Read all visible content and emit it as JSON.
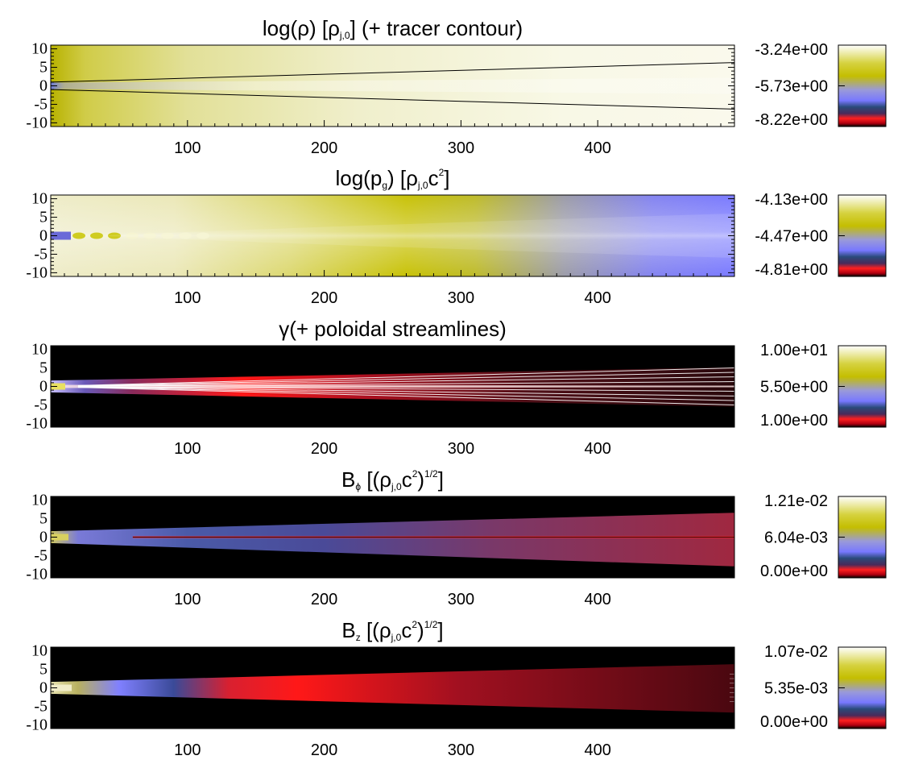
{
  "chart_data": [
    {
      "type": "heatmap",
      "title": "log(ρ) [ρ_j,0] (+ tracer contour)",
      "title_parts": {
        "main": "log(ρ) [ρ",
        "sub": "j,0",
        "tail": "] (+ tracer contour)"
      },
      "xlim": [
        0,
        500
      ],
      "ylim": [
        -11,
        11
      ],
      "xticks": [
        "100",
        "200",
        "300",
        "400"
      ],
      "xtick_values": [
        100,
        200,
        300,
        400
      ],
      "yticks": [
        "10",
        "5",
        "0",
        "-5",
        "-10"
      ],
      "ytick_values": [
        10,
        5,
        0,
        -5,
        -10
      ],
      "colorbar_ticks": [
        "-3.24e+00",
        "-5.73e+00",
        "-8.22e+00"
      ],
      "colormap": "yellow-blue-red",
      "overlay": "tracer contour",
      "contour_halfwidth": {
        "x": [
          0,
          500
        ],
        "y": [
          1,
          6.3
        ]
      }
    },
    {
      "type": "heatmap",
      "title": "log(p_g) [ρ_j,0 c^2]",
      "title_parts": {
        "main": "log(p",
        "sub1": "g",
        "mid": ") [ρ",
        "sub2": "j,0",
        "mid2": "c",
        "sup": "2",
        "tail": "]"
      },
      "xlim": [
        0,
        500
      ],
      "ylim": [
        -11,
        11
      ],
      "xticks": [
        "100",
        "200",
        "300",
        "400"
      ],
      "xtick_values": [
        100,
        200,
        300,
        400
      ],
      "yticks": [
        "10",
        "5",
        "0",
        "-5",
        "-10"
      ],
      "ytick_values": [
        10,
        5,
        0,
        -5,
        -10
      ],
      "colorbar_ticks": [
        "-4.13e+00",
        "-4.47e+00",
        "-4.81e+00"
      ],
      "colormap": "yellow-blue-red"
    },
    {
      "type": "heatmap",
      "title": "γ(+ poloidal streamlines)",
      "title_parts": {
        "main": "γ(+ poloidal streamlines)"
      },
      "xlim": [
        0,
        500
      ],
      "ylim": [
        -11,
        11
      ],
      "xticks": [
        "100",
        "200",
        "300",
        "400"
      ],
      "xtick_values": [
        100,
        200,
        300,
        400
      ],
      "yticks": [
        "10",
        "5",
        "0",
        "-5",
        "-10"
      ],
      "ytick_values": [
        10,
        5,
        0,
        -5,
        -10
      ],
      "colorbar_ticks": [
        "1.00e+01",
        "5.50e+00",
        "1.00e+00"
      ],
      "colormap": "yellow-blue-red",
      "overlay": "poloidal streamlines",
      "streamline_end_y": [
        5,
        3.8,
        2.6,
        1.3,
        -1.3,
        -2.6,
        -3.8,
        -5
      ]
    },
    {
      "type": "heatmap",
      "title": "B_ϕ [(ρ_j,0 c^2)^1/2]",
      "title_parts": {
        "main": "B",
        "sub1": "ϕ",
        "mid": " [(ρ",
        "sub2": "j,0",
        "mid2": "c",
        "sup1": "2",
        "mid3": ")",
        "sup2": "1/2",
        "tail": "]"
      },
      "xlim": [
        0,
        500
      ],
      "ylim": [
        -11,
        11
      ],
      "xticks": [
        "100",
        "200",
        "300",
        "400"
      ],
      "xtick_values": [
        100,
        200,
        300,
        400
      ],
      "yticks": [
        "10",
        "5",
        "0",
        "-5",
        "-10"
      ],
      "ytick_values": [
        10,
        5,
        0,
        -5,
        -10
      ],
      "colorbar_ticks": [
        "1.21e-02",
        "6.04e-03",
        "0.00e+00"
      ],
      "colormap": "yellow-blue-red"
    },
    {
      "type": "heatmap",
      "title": "B_z [(ρ_j,0 c^2)^1/2]",
      "title_parts": {
        "main": "B",
        "sub1": "z",
        "mid": " [(ρ",
        "sub2": "j,0",
        "mid2": "c",
        "sup1": "2",
        "mid3": ")",
        "sup2": "1/2",
        "tail": "]"
      },
      "xlim": [
        0,
        500
      ],
      "ylim": [
        -11,
        11
      ],
      "xticks": [
        "100",
        "200",
        "300",
        "400"
      ],
      "xtick_values": [
        100,
        200,
        300,
        400
      ],
      "yticks": [
        "10",
        "5",
        "0",
        "-5",
        "-10"
      ],
      "ytick_values": [
        10,
        5,
        0,
        -5,
        -10
      ],
      "colorbar_ticks": [
        "1.07e-02",
        "5.35e-03",
        "0.00e+00"
      ],
      "colormap": "yellow-blue-red"
    }
  ],
  "colors": {
    "colormap_stops": [
      "#ffffff",
      "#c8c200",
      "#8080ff",
      "#1a3a6a",
      "#ff1a1a",
      "#000000"
    ],
    "background": "#000000"
  }
}
